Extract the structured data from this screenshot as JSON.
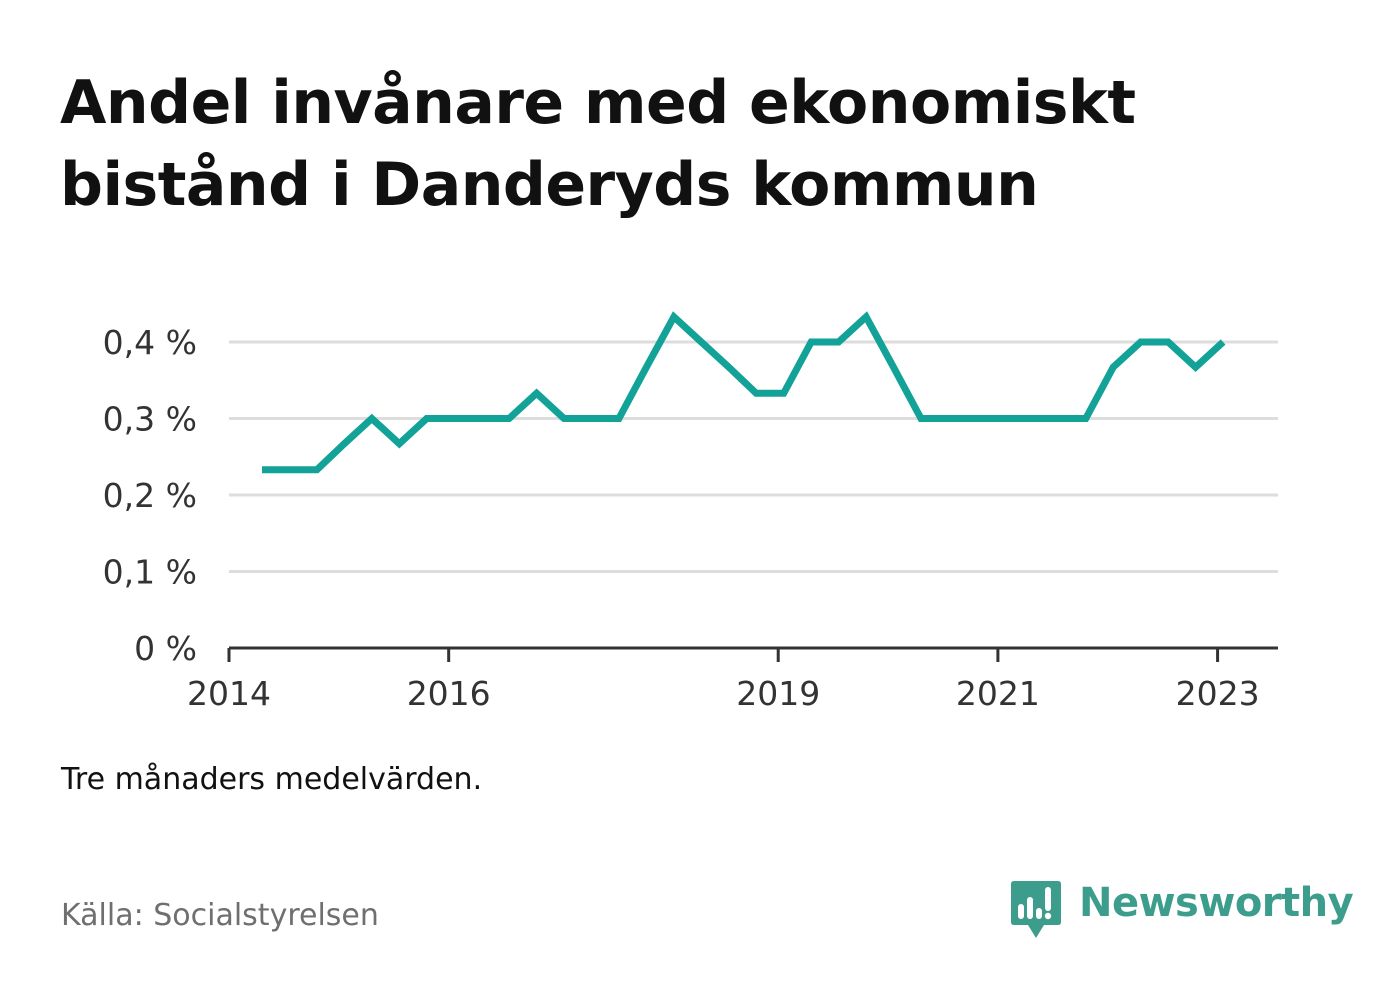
{
  "title": "Andel invånare med ekonomiskt bistånd i Danderyds kommun",
  "note": "Tre månaders medelvärden.",
  "source": "Källa: Socialstyrelsen",
  "brand": {
    "name": "Newsworthy",
    "color": "#3d9d8c",
    "icon": "bar-chart-speech-bubble-icon"
  },
  "chart_data": {
    "type": "line",
    "title": "Andel invånare med ekonomiskt bistånd i Danderyds kommun",
    "xlabel": "",
    "ylabel": "",
    "x_ticks": [
      2014,
      2016,
      2019,
      2021,
      2023
    ],
    "y_ticks": [
      {
        "value": 0,
        "label": "0 %"
      },
      {
        "value": 0.1,
        "label": "0,1 %"
      },
      {
        "value": 0.2,
        "label": "0,2 %"
      },
      {
        "value": 0.3,
        "label": "0,3 %"
      },
      {
        "value": 0.4,
        "label": "0,4 %"
      }
    ],
    "xlim": [
      2014.0,
      2023.55
    ],
    "ylim": [
      0,
      0.4
    ],
    "grid": true,
    "line_color": "#12a297",
    "series": [
      {
        "points": [
          [
            2014.3,
            0.233
          ],
          [
            2014.55,
            0.233
          ],
          [
            2014.8,
            0.233
          ],
          [
            2015.05,
            0.267
          ],
          [
            2015.3,
            0.3
          ],
          [
            2015.55,
            0.267
          ],
          [
            2015.8,
            0.3
          ],
          [
            2016.05,
            0.3
          ],
          [
            2016.3,
            0.3
          ],
          [
            2016.55,
            0.3
          ],
          [
            2016.8,
            0.333
          ],
          [
            2017.05,
            0.3
          ],
          [
            2017.3,
            0.3
          ],
          [
            2017.55,
            0.3
          ],
          [
            2017.8,
            0.367
          ],
          [
            2018.05,
            0.433
          ],
          [
            2018.3,
            0.4
          ],
          [
            2018.55,
            0.367
          ],
          [
            2018.8,
            0.333
          ],
          [
            2019.05,
            0.333
          ],
          [
            2019.3,
            0.4
          ],
          [
            2019.55,
            0.4
          ],
          [
            2019.8,
            0.433
          ],
          [
            2020.05,
            0.367
          ],
          [
            2020.3,
            0.3
          ],
          [
            2020.55,
            0.3
          ],
          [
            2020.8,
            0.3
          ],
          [
            2021.05,
            0.3
          ],
          [
            2021.3,
            0.3
          ],
          [
            2021.55,
            0.3
          ],
          [
            2021.8,
            0.3
          ],
          [
            2022.05,
            0.367
          ],
          [
            2022.3,
            0.4
          ],
          [
            2022.55,
            0.4
          ],
          [
            2022.8,
            0.367
          ],
          [
            2023.05,
            0.4
          ]
        ]
      }
    ]
  }
}
